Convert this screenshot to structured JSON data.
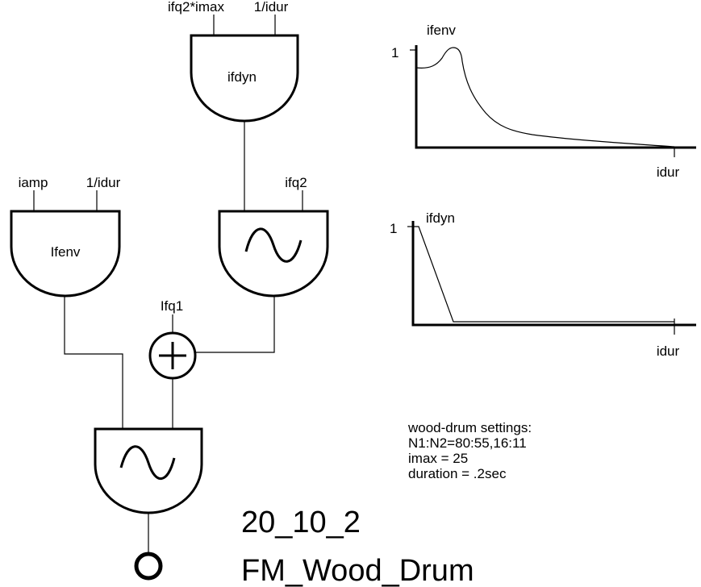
{
  "top_unit": {
    "inputs": [
      "ifq2*imax",
      "1/idur"
    ],
    "name": "ifdyn"
  },
  "left_unit": {
    "inputs": [
      "iamp",
      "1/idur"
    ],
    "name": "Ifenv"
  },
  "osc_unit": {
    "input": "ifq2"
  },
  "adder": {
    "input": "Ifq1"
  },
  "graph_top": {
    "name": "ifenv",
    "y_max_label": "1",
    "x_end_label": "idur"
  },
  "graph_bottom": {
    "name": "ifdyn",
    "y_max_label": "1",
    "x_end_label": "idur"
  },
  "notes": {
    "heading": "wood-drum settings:",
    "ratio": "N1:N2=80:55,16:11",
    "imax": "imax = 25",
    "duration": "duration = .2sec"
  },
  "figure": {
    "number": "20_10_2",
    "name": "FM_Wood_Drum"
  },
  "icons": {
    "oscillator": "sine-wave-icon",
    "adder": "plus-icon",
    "output": "output-circle-icon"
  }
}
